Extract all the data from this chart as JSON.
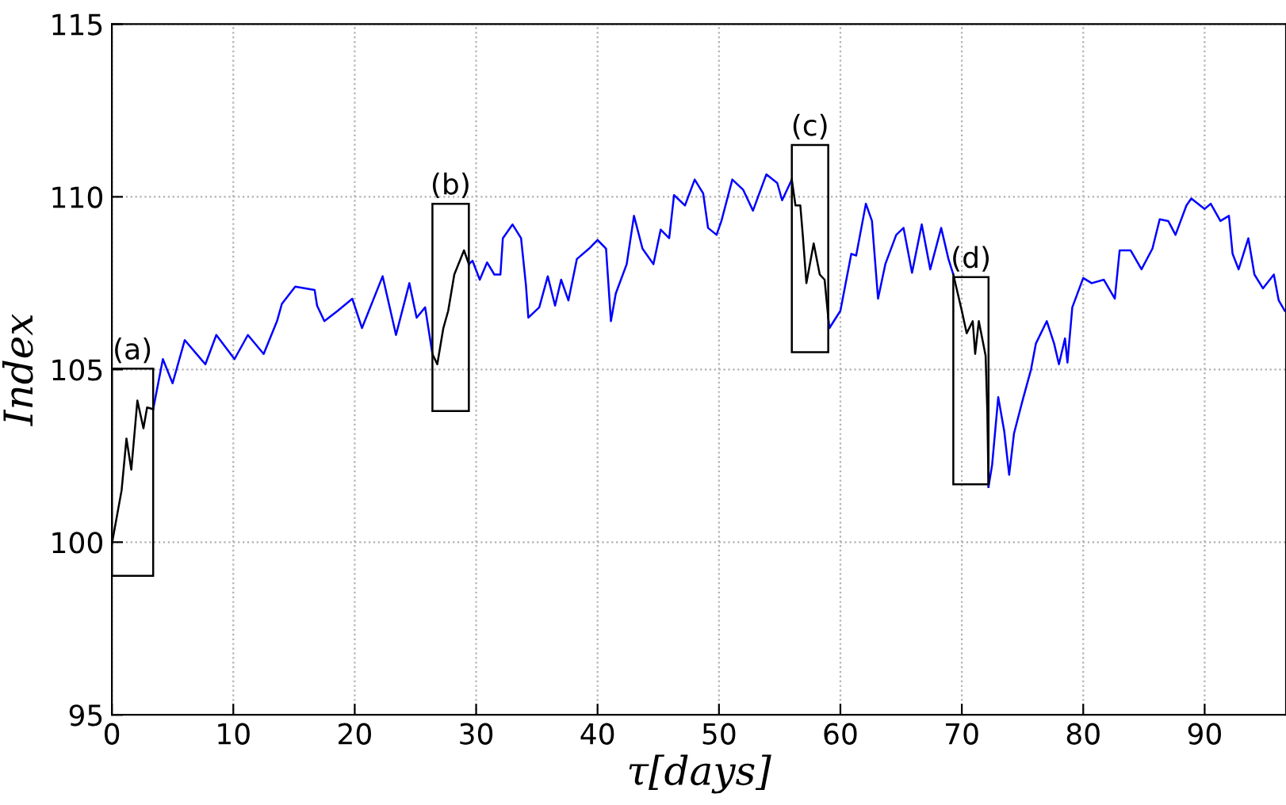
{
  "chart_data": {
    "type": "line",
    "xlabel": "τ[days]",
    "ylabel": "Index",
    "xlim": [
      0,
      96.7
    ],
    "ylim": [
      95,
      115
    ],
    "xticks": [
      0,
      10,
      20,
      30,
      40,
      50,
      60,
      70,
      80,
      90
    ],
    "yticks": [
      95,
      100,
      105,
      110,
      115
    ],
    "grid": true,
    "line_style": "solid",
    "marker": "none",
    "series": [
      {
        "color": "#000000",
        "x": [
          0,
          0.8,
          1.2,
          1.6,
          2.1,
          2.6,
          2.9,
          3.4
        ],
        "values": [
          99.95,
          101.5,
          103.0,
          102.1,
          104.1,
          103.3,
          103.9,
          103.85
        ]
      },
      {
        "color": "#0000ff",
        "x": [
          3.4,
          4.2,
          5.0,
          6.0,
          7.7,
          8.6,
          10.1,
          11.2,
          12.5,
          13.6,
          14.0,
          15.1,
          16.7,
          16.9,
          17.5,
          18.6,
          19.8,
          20.6,
          22.3,
          23.4,
          24.5,
          25.1,
          25.8,
          26.4
        ],
        "values": [
          103.85,
          105.3,
          104.6,
          105.85,
          105.15,
          106.0,
          105.3,
          106.0,
          105.45,
          106.4,
          106.9,
          107.4,
          107.3,
          106.85,
          106.4,
          106.7,
          107.05,
          106.2,
          107.7,
          106.0,
          107.5,
          106.5,
          106.8,
          105.45
        ]
      },
      {
        "color": "#000000",
        "x": [
          26.4,
          26.8,
          27.3,
          27.7,
          28.2,
          29.0,
          29.4
        ],
        "values": [
          105.45,
          105.15,
          106.2,
          106.7,
          107.75,
          108.45,
          108.05
        ]
      },
      {
        "color": "#0000ff",
        "x": [
          29.4,
          29.7,
          30.3,
          30.9,
          31.5,
          32.0,
          32.2,
          33.0,
          33.7,
          34.1,
          34.3,
          35.2,
          35.9,
          36.5,
          37.0,
          37.6,
          38.3,
          39.3,
          40.0,
          40.7,
          41.1,
          41.5,
          42.4,
          43.0,
          43.7,
          44.6,
          45.2,
          45.9,
          46.3,
          47.2,
          48.0,
          48.7,
          49.1,
          49.8,
          50.2,
          51.1,
          52.0,
          52.8,
          53.9,
          54.8,
          55.2,
          56.0
        ],
        "values": [
          108.05,
          108.15,
          107.6,
          108.1,
          107.75,
          107.75,
          108.8,
          109.2,
          108.8,
          107.45,
          106.5,
          106.8,
          107.7,
          106.85,
          107.6,
          107.0,
          108.2,
          108.5,
          108.75,
          108.5,
          106.4,
          107.2,
          108.05,
          109.45,
          108.5,
          108.05,
          109.05,
          108.8,
          110.05,
          109.75,
          110.5,
          110.1,
          109.1,
          108.9,
          109.3,
          110.5,
          110.2,
          109.6,
          110.65,
          110.4,
          109.9,
          110.5
        ]
      },
      {
        "color": "#000000",
        "x": [
          56.0,
          56.3,
          56.7,
          56.9,
          57.2,
          57.8,
          58.3,
          58.7,
          59.0
        ],
        "values": [
          110.5,
          109.75,
          109.75,
          108.9,
          107.5,
          108.65,
          107.75,
          107.6,
          106.5
        ]
      },
      {
        "color": "#0000ff",
        "x": [
          59.0,
          59.1,
          60.0,
          60.9,
          61.3,
          62.1,
          62.6,
          63.1,
          63.7,
          64.6,
          65.2,
          65.9,
          66.7,
          67.4,
          68.3,
          68.9,
          69.3
        ],
        "values": [
          106.5,
          106.2,
          106.7,
          108.35,
          108.3,
          109.8,
          109.3,
          107.05,
          108.05,
          108.9,
          109.1,
          107.8,
          109.2,
          107.9,
          109.1,
          108.2,
          107.75
        ]
      },
      {
        "color": "#000000",
        "x": [
          69.3,
          70.0,
          70.4,
          70.9,
          71.1,
          71.4,
          71.96,
          72.1,
          72.2
        ],
        "values": [
          107.75,
          106.7,
          106.05,
          106.4,
          105.45,
          106.4,
          105.4,
          103.8,
          101.6
        ]
      },
      {
        "color": "#0000ff",
        "x": [
          72.2,
          72.5,
          73.0,
          73.5,
          73.9,
          74.3,
          75.0,
          75.7,
          76.1,
          77.0,
          77.6,
          78.0,
          78.5,
          78.7,
          79.1,
          80.0,
          80.7,
          81.7,
          82.6,
          83.0,
          83.9,
          84.8,
          85.7,
          86.3,
          87.0,
          87.6,
          88.5,
          88.9,
          90.0,
          90.5,
          91.3,
          92.0,
          92.3,
          92.8,
          93.6,
          94.1,
          94.8,
          95.7,
          96.1,
          96.6
        ],
        "values": [
          101.6,
          102.25,
          104.2,
          103.2,
          101.95,
          103.15,
          104.1,
          105.0,
          105.75,
          106.4,
          105.75,
          105.15,
          105.9,
          105.2,
          106.8,
          107.65,
          107.5,
          107.6,
          107.05,
          108.45,
          108.45,
          107.9,
          108.5,
          109.35,
          109.3,
          108.9,
          109.75,
          109.95,
          109.65,
          109.8,
          109.3,
          109.45,
          108.35,
          107.9,
          108.8,
          107.75,
          107.35,
          107.75,
          107.0,
          106.7
        ]
      }
    ],
    "annotations": [
      "(a)",
      "(b)",
      "(c)",
      "(d)"
    ]
  }
}
